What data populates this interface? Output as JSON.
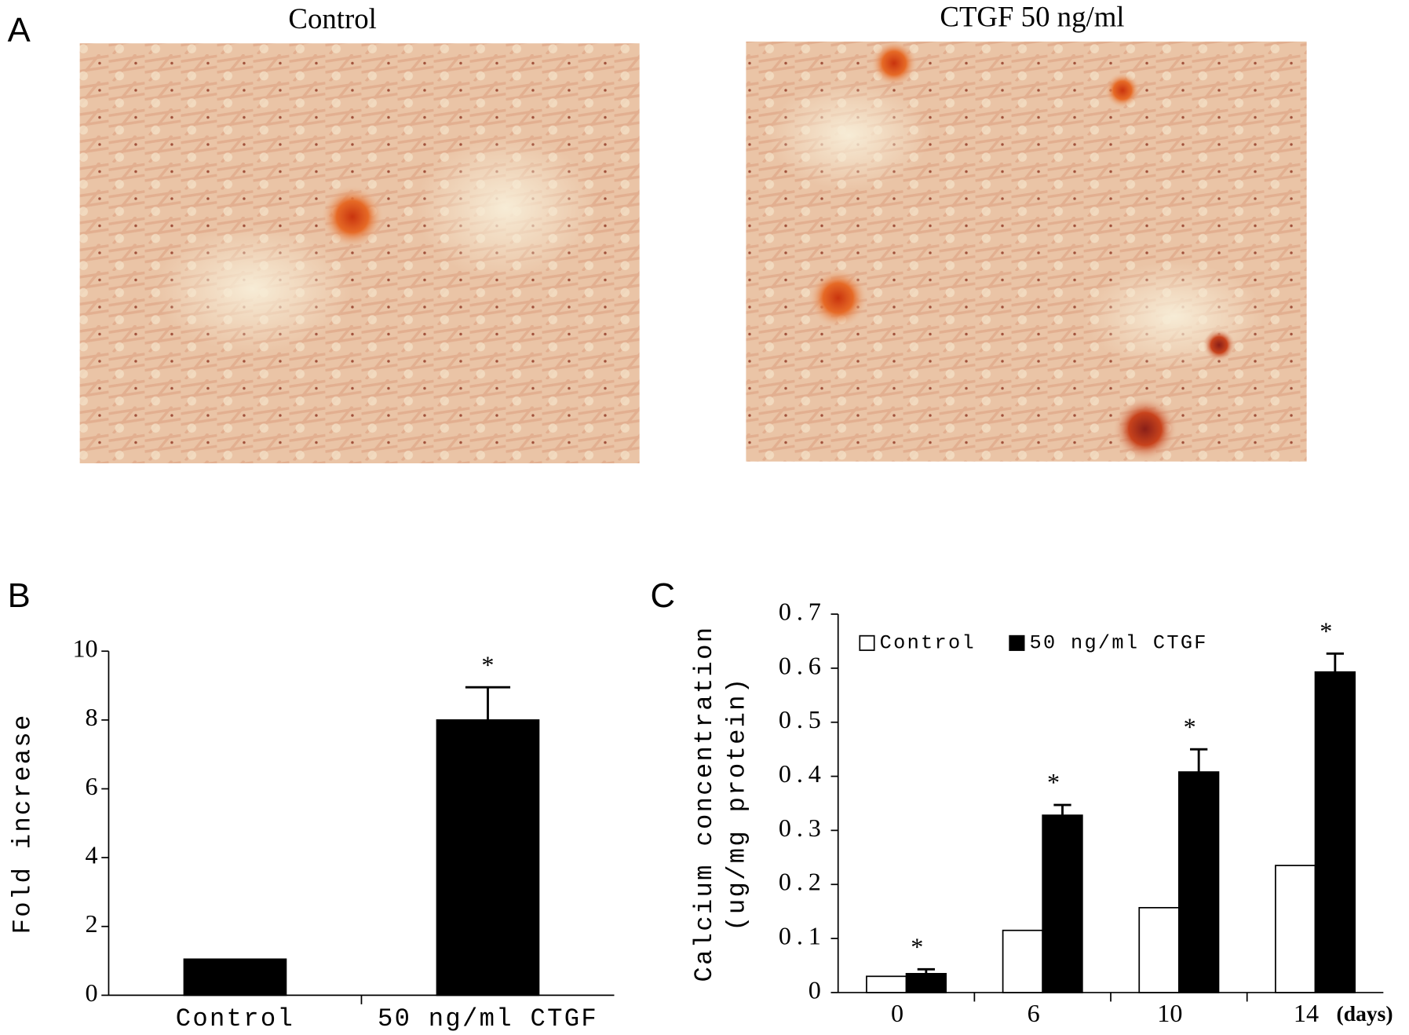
{
  "panel_a": {
    "label": "A",
    "images": [
      {
        "title": "Control"
      },
      {
        "title": "CTGF 50 ng/ml"
      }
    ]
  },
  "chart_data": [
    {
      "type": "bar",
      "panel_label": "B",
      "ylabel": [
        "Fold increase"
      ],
      "categories": [
        "Control",
        "50 ng/ml CTGF"
      ],
      "series": [
        {
          "color": "#000000",
          "values": [
            1.05,
            8.0
          ],
          "errors": [
            null,
            0.95
          ]
        }
      ],
      "significance": [
        null,
        "*"
      ],
      "ylim": [
        0,
        10
      ],
      "yticks": [
        0,
        2,
        4,
        6,
        8,
        10
      ]
    },
    {
      "type": "bar",
      "panel_label": "C",
      "ylabel": [
        "Calcium concentration",
        "(ug/mg protein)"
      ],
      "xlabel": "(days)",
      "categories": [
        "0",
        "6",
        "10",
        "14"
      ],
      "series": [
        {
          "name": "Control",
          "color": "#ffffff",
          "values": [
            0.03,
            0.115,
            0.157,
            0.235
          ],
          "errors": [
            null,
            null,
            null,
            null
          ]
        },
        {
          "name": "50 ng/ml CTGF",
          "color": "#000000",
          "values": [
            0.035,
            0.328,
            0.408,
            0.593
          ],
          "errors": [
            0.008,
            0.019,
            0.042,
            0.034
          ]
        }
      ],
      "significance": [
        "*",
        "*",
        "*",
        "*"
      ],
      "ylim": [
        0,
        0.7
      ],
      "yticks": [
        0,
        0.1,
        0.2,
        0.3,
        0.4,
        0.5,
        0.6,
        0.7
      ]
    }
  ]
}
